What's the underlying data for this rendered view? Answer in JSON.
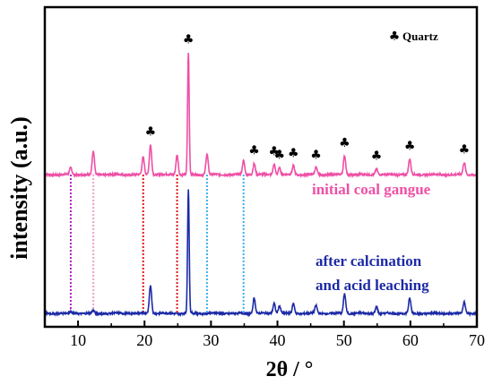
{
  "chart_data": {
    "type": "line",
    "xlabel": "2θ / °",
    "ylabel": "intensity (a.u.)",
    "xlim": [
      5,
      70
    ],
    "x_ticks": [
      10,
      20,
      30,
      40,
      50,
      60,
      70
    ],
    "y_ticks_shown": false,
    "grid": false,
    "legend": {
      "symbol": "♣",
      "label": "Quartz",
      "placement": "top-right"
    },
    "series": [
      {
        "name": "initial coal gangue",
        "color": "#ef4fa6",
        "baseline": 0,
        "peaks": [
          {
            "x": 8.9,
            "y": 8
          },
          {
            "x": 12.3,
            "y": 27
          },
          {
            "x": 19.8,
            "y": 20
          },
          {
            "x": 20.9,
            "y": 35
          },
          {
            "x": 24.9,
            "y": 23
          },
          {
            "x": 26.6,
            "y": 142
          },
          {
            "x": 29.4,
            "y": 24
          },
          {
            "x": 34.9,
            "y": 16
          },
          {
            "x": 36.5,
            "y": 13
          },
          {
            "x": 39.5,
            "y": 12
          },
          {
            "x": 40.3,
            "y": 8
          },
          {
            "x": 42.4,
            "y": 10
          },
          {
            "x": 45.8,
            "y": 8
          },
          {
            "x": 50.1,
            "y": 22
          },
          {
            "x": 54.9,
            "y": 7
          },
          {
            "x": 59.9,
            "y": 18
          },
          {
            "x": 68.1,
            "y": 14
          }
        ]
      },
      {
        "name": "after calcination and acid leaching",
        "color": "#1c2aa6",
        "baseline": 0,
        "peaks": [
          {
            "x": 8.9,
            "y": 2
          },
          {
            "x": 12.3,
            "y": 3
          },
          {
            "x": 20.9,
            "y": 33
          },
          {
            "x": 26.6,
            "y": 145
          },
          {
            "x": 36.5,
            "y": 18
          },
          {
            "x": 39.5,
            "y": 12
          },
          {
            "x": 40.3,
            "y": 9
          },
          {
            "x": 42.4,
            "y": 11
          },
          {
            "x": 45.8,
            "y": 9
          },
          {
            "x": 50.1,
            "y": 23
          },
          {
            "x": 54.9,
            "y": 8
          },
          {
            "x": 59.9,
            "y": 17
          },
          {
            "x": 68.1,
            "y": 13
          }
        ]
      }
    ],
    "reference_lines": [
      {
        "x": 8.9,
        "color": "#b020c0"
      },
      {
        "x": 12.3,
        "color": "#f0a0c8"
      },
      {
        "x": 19.8,
        "color": "#e01818"
      },
      {
        "x": 24.9,
        "color": "#e01818"
      },
      {
        "x": 29.4,
        "color": "#40b0f0"
      },
      {
        "x": 34.9,
        "color": "#40b0f0"
      }
    ],
    "annotations": [
      {
        "x": 20.9,
        "text": "♣"
      },
      {
        "x": 26.6,
        "text": "♣"
      },
      {
        "x": 36.5,
        "text": "♣"
      },
      {
        "x": 39.5,
        "text": "♣"
      },
      {
        "x": 40.3,
        "text": "♣"
      },
      {
        "x": 42.4,
        "text": "♣"
      },
      {
        "x": 45.8,
        "text": "♣"
      },
      {
        "x": 50.1,
        "text": "♣"
      },
      {
        "x": 54.9,
        "text": "♣"
      },
      {
        "x": 59.9,
        "text": "♣"
      },
      {
        "x": 68.1,
        "text": "♣"
      }
    ],
    "series_labels": [
      {
        "series": 0,
        "lines": [
          "initial coal gangue"
        ]
      },
      {
        "series": 1,
        "lines": [
          "after calcination",
          "and acid leaching"
        ]
      }
    ]
  }
}
